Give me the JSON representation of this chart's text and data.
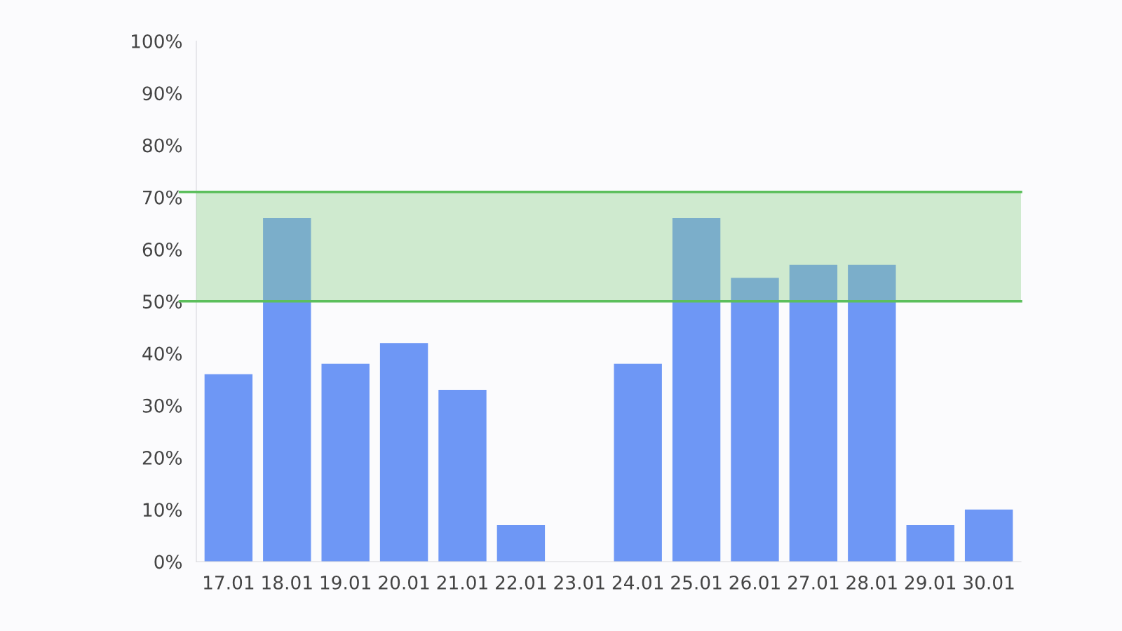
{
  "chart_data": {
    "type": "bar",
    "categories": [
      "17.01",
      "18.01",
      "19.01",
      "20.01",
      "21.01",
      "22.01",
      "23.01",
      "24.01",
      "25.01",
      "26.01",
      "27.01",
      "28.01",
      "29.01",
      "30.01"
    ],
    "values": [
      36,
      66,
      38,
      42,
      33,
      7,
      0,
      38,
      66,
      54.5,
      57,
      57,
      7,
      10
    ],
    "color": "#6e97f5",
    "ylim": [
      0,
      100
    ],
    "yticks": [
      {
        "value": 0,
        "label": "0%"
      },
      {
        "value": 10,
        "label": "10%"
      },
      {
        "value": 20,
        "label": "20%"
      },
      {
        "value": 30,
        "label": "30%"
      },
      {
        "value": 40,
        "label": "40%"
      },
      {
        "value": 50,
        "label": "50%"
      },
      {
        "value": 60,
        "label": "60%"
      },
      {
        "value": 70,
        "label": "70%"
      },
      {
        "value": 80,
        "label": "80%"
      },
      {
        "value": 90,
        "label": "90%"
      },
      {
        "value": 100,
        "label": "100%"
      }
    ],
    "bands": [
      {
        "axis": "y",
        "from": 50,
        "to": 71,
        "color": "#8fd18a"
      }
    ],
    "ref_lines": [
      {
        "axis": "y",
        "value": 50,
        "color": "#5cbf5c"
      },
      {
        "axis": "y",
        "value": 71,
        "color": "#5cbf5c"
      }
    ],
    "grid": false
  }
}
